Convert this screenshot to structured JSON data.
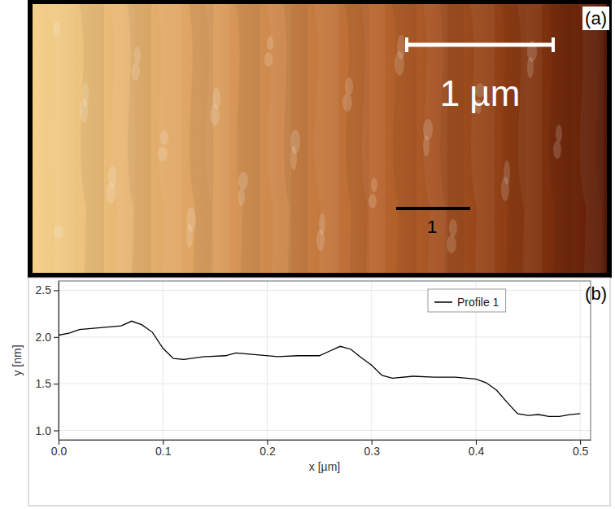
{
  "chart_data": [
    {
      "type": "image",
      "annotations": [
        {
          "text": "(a)"
        },
        {
          "text": "1 µm"
        },
        {
          "text": "1"
        }
      ]
    },
    {
      "type": "line",
      "annotations": [
        {
          "text": "(b)"
        }
      ],
      "x_label": "x [µm]",
      "y_label": "y [nm]",
      "x": [
        0,
        0.01,
        0.02,
        0.04,
        0.06,
        0.07,
        0.08,
        0.09,
        0.1,
        0.11,
        0.12,
        0.14,
        0.16,
        0.17,
        0.19,
        0.21,
        0.23,
        0.25,
        0.26,
        0.27,
        0.28,
        0.29,
        0.3,
        0.31,
        0.32,
        0.34,
        0.36,
        0.38,
        0.4,
        0.41,
        0.42,
        0.43,
        0.44,
        0.45,
        0.46,
        0.47,
        0.48,
        0.49,
        0.5
      ],
      "series": [
        {
          "name": "Profile 1",
          "color": "#000000",
          "values": [
            2.02,
            2.04,
            2.08,
            2.1,
            2.12,
            2.17,
            2.13,
            2.05,
            1.88,
            1.77,
            1.76,
            1.79,
            1.8,
            1.83,
            1.81,
            1.79,
            1.8,
            1.8,
            1.85,
            1.9,
            1.87,
            1.78,
            1.7,
            1.59,
            1.56,
            1.58,
            1.57,
            1.57,
            1.55,
            1.51,
            1.43,
            1.3,
            1.18,
            1.16,
            1.17,
            1.15,
            1.15,
            1.17,
            1.18
          ]
        }
      ],
      "xlim": [
        0,
        0.51
      ],
      "ylim": [
        0.9,
        2.6
      ],
      "xticks": [
        {
          "value": 0,
          "label": "0.0"
        },
        {
          "value": 0.1,
          "label": "0.1"
        },
        {
          "value": 0.2,
          "label": "0.2"
        },
        {
          "value": 0.3,
          "label": "0.3"
        },
        {
          "value": 0.4,
          "label": "0.4"
        },
        {
          "value": 0.5,
          "label": "0.5"
        }
      ],
      "yticks": [
        {
          "value": 1.0,
          "label": "1.0"
        },
        {
          "value": 1.5,
          "label": "1.5"
        },
        {
          "value": 2.0,
          "label": "2.0"
        },
        {
          "value": 2.5,
          "label": "2.5"
        }
      ],
      "grid": true,
      "legend": "upper right"
    }
  ]
}
